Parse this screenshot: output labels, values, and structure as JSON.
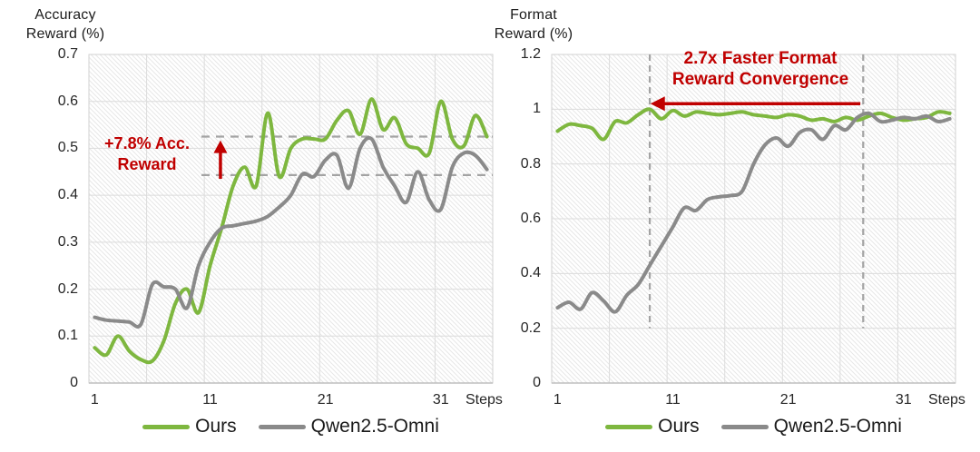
{
  "colors": {
    "ours_green": "#7EB73F",
    "qwen_gray": "#8A8A8A",
    "annotation_red": "#C00000",
    "gridline": "#DCDCDC",
    "hatch": "#E7E7E7",
    "dashed_gray": "#A3A3A3",
    "axis_line": "#BFBFBF",
    "text": "#262626"
  },
  "chart_data": [
    {
      "type": "line",
      "title": "Accuracy Reward (%)",
      "title_lines": [
        "Accuracy",
        "Reward (%)"
      ],
      "xlabel": "Steps",
      "x_range": [
        1,
        35
      ],
      "xticks": [
        "1",
        "11",
        "21",
        "31"
      ],
      "xtick_values": [
        1,
        11,
        21,
        31
      ],
      "ylim": [
        0,
        0.7
      ],
      "ytick_labels": [
        "0.7",
        "0.6",
        "0.5",
        "0.4",
        "0.3",
        "0.2",
        "0.1",
        "0"
      ],
      "ytick_values": [
        0.7,
        0.6,
        0.5,
        0.4,
        0.3,
        0.2,
        0.1,
        0
      ],
      "grid": true,
      "legend_position": "bottom",
      "series": [
        {
          "name": "Ours",
          "color": "#7EB73F",
          "values": [
            0.075,
            0.06,
            0.1,
            0.068,
            0.05,
            0.047,
            0.09,
            0.17,
            0.2,
            0.15,
            0.25,
            0.33,
            0.42,
            0.46,
            0.42,
            0.575,
            0.44,
            0.5,
            0.52,
            0.52,
            0.52,
            0.56,
            0.58,
            0.53,
            0.605,
            0.54,
            0.565,
            0.51,
            0.5,
            0.49,
            0.6,
            0.52,
            0.505,
            0.57,
            0.525
          ]
        },
        {
          "name": "Qwen2.5-Omni",
          "color": "#8A8A8A",
          "values": [
            0.14,
            0.134,
            0.132,
            0.13,
            0.125,
            0.21,
            0.205,
            0.2,
            0.16,
            0.25,
            0.3,
            0.33,
            0.335,
            0.34,
            0.345,
            0.355,
            0.375,
            0.4,
            0.445,
            0.44,
            0.475,
            0.485,
            0.415,
            0.5,
            0.52,
            0.46,
            0.42,
            0.385,
            0.45,
            0.39,
            0.37,
            0.46,
            0.49,
            0.485,
            0.455
          ]
        }
      ],
      "annotation": {
        "text_lines": [
          "+7.8% Acc.",
          "Reward"
        ],
        "dashed_levels": [
          0.525,
          0.443
        ],
        "dashed_start_step": 10.25,
        "arrow": {
          "direction": "up",
          "at_step": 11.9,
          "from_value": 0.435,
          "to_value": 0.517
        }
      }
    },
    {
      "type": "line",
      "title": "Format Reward (%)",
      "title_lines": [
        "Format",
        "Reward (%)"
      ],
      "xlabel": "Steps",
      "x_range": [
        1,
        35
      ],
      "xticks": [
        "1",
        "11",
        "21",
        "31"
      ],
      "xtick_values": [
        1,
        11,
        21,
        31
      ],
      "ylim": [
        0,
        1.2
      ],
      "ytick_labels": [
        "1.2",
        "1",
        "0.8",
        "0.6",
        "0.4",
        "0.2",
        "0"
      ],
      "ytick_values": [
        1.2,
        1.0,
        0.8,
        0.6,
        0.4,
        0.2,
        0
      ],
      "grid": true,
      "legend_position": "bottom",
      "series": [
        {
          "name": "Ours",
          "color": "#7EB73F",
          "values": [
            0.92,
            0.945,
            0.94,
            0.93,
            0.89,
            0.955,
            0.95,
            0.98,
            1.0,
            0.965,
            0.995,
            0.975,
            0.99,
            0.985,
            0.98,
            0.985,
            0.99,
            0.98,
            0.975,
            0.97,
            0.98,
            0.975,
            0.96,
            0.965,
            0.955,
            0.97,
            0.96,
            0.975,
            0.985,
            0.97,
            0.96,
            0.965,
            0.97,
            0.99,
            0.985
          ]
        },
        {
          "name": "Qwen2.5-Omni",
          "color": "#8A8A8A",
          "values": [
            0.275,
            0.295,
            0.27,
            0.33,
            0.3,
            0.26,
            0.32,
            0.36,
            0.43,
            0.5,
            0.57,
            0.64,
            0.63,
            0.67,
            0.68,
            0.685,
            0.7,
            0.8,
            0.87,
            0.895,
            0.865,
            0.915,
            0.925,
            0.89,
            0.94,
            0.925,
            0.97,
            0.985,
            0.955,
            0.96,
            0.97,
            0.965,
            0.975,
            0.955,
            0.965
          ]
        }
      ],
      "annotation": {
        "text_lines": [
          "2.7x Faster Format",
          "Reward Convergence"
        ],
        "dashed_steps": [
          9,
          27.5
        ],
        "dashed_bottom_value": 0.2,
        "arrow": {
          "direction": "left",
          "at_value": 1.02,
          "from_step": 27.25,
          "to_step": 9.05
        }
      }
    }
  ]
}
